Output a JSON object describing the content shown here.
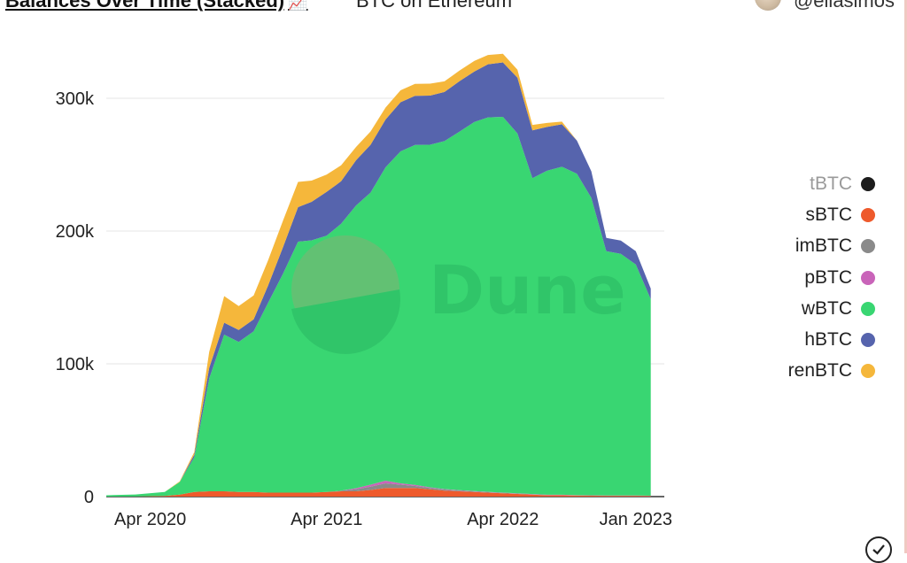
{
  "header": {
    "title": "Balances Over Time (Stacked)",
    "title_emoji": "📈",
    "subtitle": "BTC on Ethereum",
    "author": "@eliasimos"
  },
  "watermark": {
    "text": "Dune"
  },
  "colors": {
    "tBTC": "#1c1c1c",
    "sBTC": "#ee5a2c",
    "imBTC": "#8a8a8a",
    "pBTC": "#c964b9",
    "wBTC": "#39d672",
    "hBTC": "#5664ad",
    "renBTC": "#f5b73b"
  },
  "chart_data": {
    "type": "area",
    "stacked": true,
    "x_label": "",
    "y_label": "",
    "x_ticks": [
      "Apr 2020",
      "Apr 2021",
      "Apr 2022",
      "Jan 2023"
    ],
    "y_ticks": [
      "0",
      "100k",
      "200k",
      "300k"
    ],
    "ylim": [
      0,
      330000
    ],
    "xlim": [
      "2020-01-01",
      "2023-03-01"
    ],
    "x": [
      "2020-01-01",
      "2020-03-01",
      "2020-05-01",
      "2020-06-01",
      "2020-07-01",
      "2020-08-01",
      "2020-09-01",
      "2020-10-01",
      "2020-11-01",
      "2020-12-01",
      "2021-01-01",
      "2021-02-01",
      "2021-03-01",
      "2021-04-01",
      "2021-05-01",
      "2021-06-01",
      "2021-07-01",
      "2021-08-01",
      "2021-09-01",
      "2021-10-01",
      "2021-11-01",
      "2021-12-01",
      "2022-01-01",
      "2022-02-01",
      "2022-03-01",
      "2022-04-01",
      "2022-05-01",
      "2022-06-01",
      "2022-07-01",
      "2022-08-01",
      "2022-09-01",
      "2022-10-01",
      "2022-11-01",
      "2022-12-01",
      "2023-01-01",
      "2023-02-01"
    ],
    "series": [
      {
        "name": "tBTC",
        "values": [
          0,
          0,
          0,
          0,
          0,
          0,
          0,
          0,
          0,
          0,
          0,
          0,
          0,
          0,
          0,
          0,
          0,
          0,
          0,
          0,
          0,
          0,
          0,
          0,
          0,
          0,
          0,
          0,
          0,
          0,
          0,
          0,
          0,
          0,
          0,
          0
        ]
      },
      {
        "name": "sBTC",
        "values": [
          0,
          100,
          500,
          1500,
          3500,
          4000,
          4000,
          3500,
          3500,
          3000,
          3000,
          3000,
          3000,
          3500,
          4000,
          4000,
          5000,
          6500,
          6500,
          6500,
          5500,
          4500,
          4000,
          3500,
          3000,
          2500,
          2000,
          1500,
          1000,
          1000,
          800,
          700,
          600,
          600,
          600,
          500
        ]
      },
      {
        "name": "imBTC",
        "values": [
          0,
          0,
          0,
          0,
          0,
          0,
          0,
          0,
          0,
          0,
          0,
          0,
          0,
          0,
          500,
          1500,
          2500,
          3500,
          2500,
          1500,
          1000,
          800,
          500,
          400,
          300,
          300,
          300,
          200,
          200,
          200,
          200,
          200,
          100,
          100,
          100,
          100
        ]
      },
      {
        "name": "pBTC",
        "values": [
          0,
          0,
          0,
          0,
          0,
          0,
          0,
          0,
          0,
          0,
          0,
          0,
          0,
          0,
          0,
          800,
          1500,
          2000,
          1000,
          800,
          500,
          400,
          300,
          300,
          300,
          200,
          200,
          200,
          200,
          200,
          100,
          100,
          100,
          100,
          100,
          100
        ]
      },
      {
        "name": "wBTC",
        "values": [
          1000,
          1500,
          3000,
          9500,
          26000,
          85000,
          118000,
          113000,
          121000,
          143000,
          165000,
          189000,
          190000,
          193000,
          201000,
          213000,
          220000,
          236000,
          250000,
          256000,
          258000,
          262000,
          270000,
          278000,
          282000,
          283000,
          271000,
          238000,
          244000,
          247000,
          242000,
          224000,
          184000,
          182000,
          174000,
          148000
        ]
      },
      {
        "name": "hBTC",
        "values": [
          0,
          0,
          0,
          0,
          2000,
          8000,
          9000,
          9000,
          9000,
          13000,
          20000,
          26000,
          29000,
          33000,
          32000,
          34000,
          36000,
          36000,
          37000,
          37000,
          37000,
          37000,
          38000,
          38000,
          40000,
          41000,
          42000,
          36000,
          33000,
          32000,
          25000,
          20000,
          10000,
          10000,
          10000,
          8000
        ]
      },
      {
        "name": "renBTC",
        "values": [
          0,
          0,
          0,
          500,
          2000,
          12000,
          20000,
          18000,
          18000,
          19000,
          20000,
          19000,
          16000,
          13000,
          12000,
          10000,
          10000,
          9000,
          9000,
          9000,
          9000,
          8000,
          8000,
          8000,
          7000,
          6500,
          6000,
          4000,
          3000,
          2000,
          0,
          0,
          0,
          0,
          0,
          0
        ]
      }
    ]
  }
}
